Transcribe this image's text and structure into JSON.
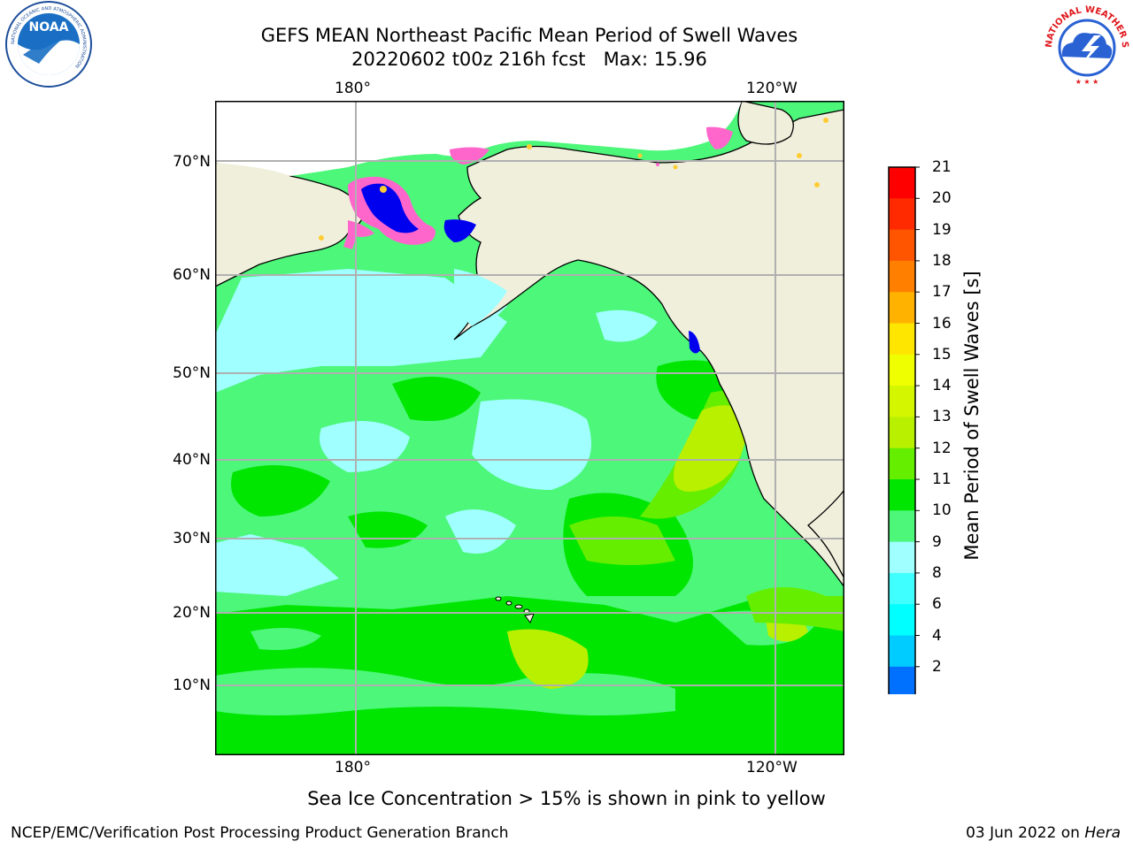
{
  "title_line1": "GEFS MEAN Northeast Pacific Mean Period of Swell Waves",
  "title_line2": "20220602 t00z 216h fcst   Max: 15.96",
  "lat_labels": [
    "70°N",
    "60°N",
    "50°N",
    "40°N",
    "30°N",
    "20°N",
    "10°N"
  ],
  "lon_labels": [
    "180°",
    "120°W"
  ],
  "colorbar": {
    "title": "Mean Period of Swell Waves [s]",
    "ticks": [
      "21",
      "20",
      "19",
      "18",
      "17",
      "16",
      "15",
      "14",
      "13",
      "12",
      "11",
      "10",
      "9",
      "8",
      "6",
      "4",
      "2"
    ],
    "colors": [
      "#ff0000",
      "#ff2a00",
      "#ff5500",
      "#ff8000",
      "#ffb300",
      "#ffe600",
      "#f0ff00",
      "#d4f700",
      "#b8f000",
      "#66ee00",
      "#00e600",
      "#4cf77a",
      "#a0ffff",
      "#40ffff",
      "#00ffff",
      "#00ccff",
      "#0070ff",
      "#0000ee"
    ]
  },
  "sea_ice_note": "Sea Ice Concentration > 15% is shown in pink to yellow",
  "footer_left": "NCEP/EMC/Verification Post Processing Product Generation Branch",
  "footer_date": "03 Jun 2022 on",
  "footer_host": "Hera",
  "noaa_logo": {
    "text": "NOAA",
    "ring_text": "NATIONAL OCEANIC AND ATMOSPHERIC ADMINISTRATION"
  },
  "nws_logo": {
    "ring_text": "NATIONAL WEATHER SERVICE"
  },
  "map_colors": {
    "land": "#efefdc",
    "ocean_base": "#4cf77a",
    "light_cyan": "#a0ffff",
    "green": "#00e600",
    "lime": "#66ee00",
    "yellow_green": "#b8f000",
    "dark_blue": "#0000ee",
    "ice_pink": "#ff66cc",
    "ice_yellow": "#ffcc33"
  }
}
